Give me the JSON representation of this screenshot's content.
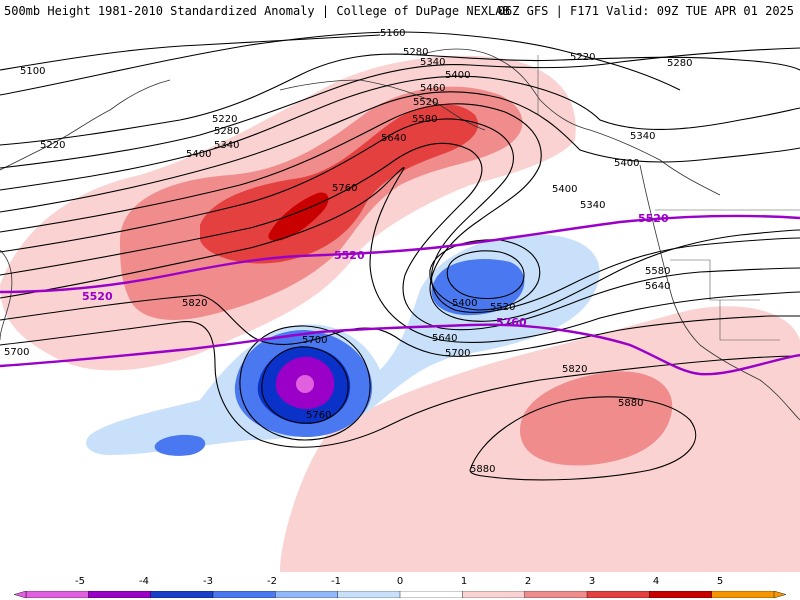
{
  "header": {
    "title_left": "500mb Height 1981-2010 Standardized Anomaly | College of DuPage NEXLAB",
    "title_right": "06Z GFS | F171 Valid: 09Z TUE APR 01 2025"
  },
  "map": {
    "product": "500mb geopotential height with standardized anomaly shading",
    "height_contour_labels": [
      "5100",
      "5160",
      "5220",
      "5280",
      "5340",
      "5400",
      "5460",
      "5520",
      "5580",
      "5640",
      "5700",
      "5760",
      "5820",
      "5880"
    ],
    "climatology_contours": [
      {
        "label": "5520",
        "color": "#9a00c8"
      },
      {
        "label": "5760",
        "color": "#9a00c8"
      }
    ],
    "anomaly_colors": {
      "-5": "#e060e0",
      "-4": "#9a00c8",
      "-3": "#0a32c8",
      "-2": "#4a78f0",
      "-1": "#c8e0fa",
      "0": "#ffffff",
      "1": "#fad2d2",
      "2": "#f08c8c",
      "3": "#e44040",
      "4": "#c80000",
      "5": "#f59600"
    },
    "features": [
      {
        "name": "strong positive anomaly ridge",
        "peak": "+4"
      },
      {
        "name": "closed low",
        "peak": "-5",
        "contour": "5760"
      },
      {
        "name": "cutoff trough",
        "peak": "-2",
        "contour": "5400"
      },
      {
        "name": "subtropical ridge",
        "peak": "+3",
        "contour": "5880"
      }
    ],
    "legend_entries": [
      "-5",
      "-4",
      "-3",
      "-2",
      "-1",
      "0",
      "1",
      "2",
      "3",
      "4",
      "5"
    ]
  },
  "colorbar": {
    "ticks": [
      "-5",
      "-4",
      "-3",
      "-2",
      "-1",
      "0",
      "1",
      "2",
      "3",
      "4",
      "5"
    ],
    "segment_colors": [
      "#e060e0",
      "#9a00c8",
      "#1a40c8",
      "#4a78f0",
      "#90b8f8",
      "#c8e0fa",
      "#ffffff",
      "#fad2d2",
      "#f08c8c",
      "#e44040",
      "#c80000",
      "#f59600"
    ]
  }
}
